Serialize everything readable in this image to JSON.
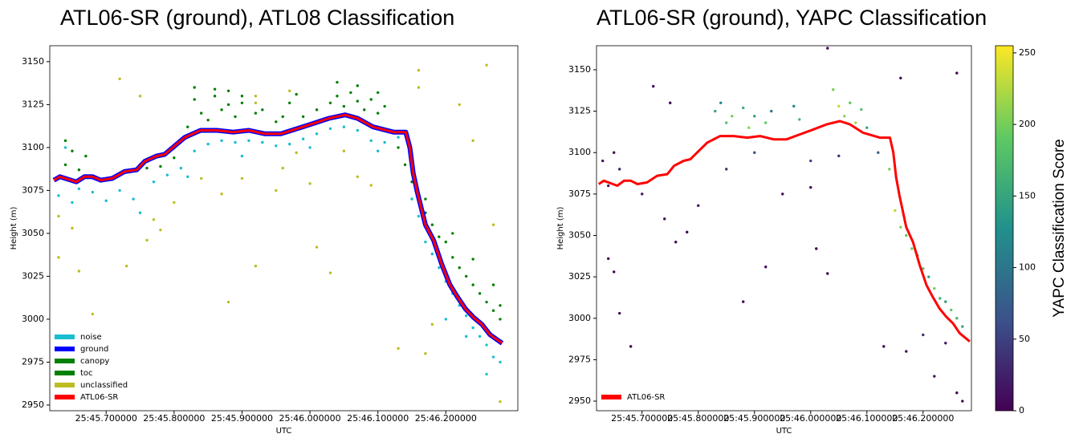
{
  "chart_data": [
    {
      "type": "scatter",
      "title": "ATL06-SR (ground), ATL08 Classification",
      "xlabel": "UTC",
      "ylabel": "Height (m)",
      "xlim": [
        45.617,
        46.306
      ],
      "ylim": [
        2946.7,
        3159.3
      ],
      "xticks": [
        {
          "value": 45.7,
          "label": "25:45.700000"
        },
        {
          "value": 45.8,
          "label": "25:45.800000"
        },
        {
          "value": 45.9,
          "label": "25:45.900000"
        },
        {
          "value": 46.0,
          "label": "25:46.000000"
        },
        {
          "value": 46.1,
          "label": "25:46.100000"
        },
        {
          "value": 46.2,
          "label": "25:46.200000"
        }
      ],
      "yticks": [
        2950,
        2975,
        3000,
        3025,
        3050,
        3075,
        3100,
        3125,
        3150
      ],
      "legend": "lower left",
      "series": [
        {
          "name": "noise",
          "color": "#17becf",
          "x": [
            45.63,
            45.64,
            45.65,
            45.66,
            45.68,
            45.7,
            45.72,
            45.74,
            45.75,
            45.77,
            45.79,
            45.81,
            45.83,
            45.85,
            45.87,
            45.89,
            45.91,
            45.93,
            45.95,
            45.97,
            45.99,
            46.01,
            46.03,
            46.05,
            46.07,
            46.09,
            46.11,
            46.13,
            46.15,
            46.16,
            46.17,
            46.18,
            46.19,
            46.2,
            46.21,
            46.22,
            46.23,
            46.24,
            46.25,
            46.26,
            46.27,
            46.28,
            45.9,
            46.0,
            46.1,
            45.82,
            46.23,
            46.26,
            46.2
          ],
          "values": [
            3072,
            3100,
            3068,
            3076,
            3074,
            3069,
            3075,
            3070,
            3062,
            3080,
            3084,
            3088,
            3098,
            3102,
            3104,
            3103,
            3104,
            3103,
            3101,
            3102,
            3105,
            3108,
            3111,
            3112,
            3110,
            3104,
            3103,
            3106,
            3070,
            3060,
            3045,
            3038,
            3030,
            3022,
            3015,
            3008,
            3002,
            2995,
            2990,
            2985,
            2978,
            2975,
            3095,
            3100,
            3098,
            3083,
            2990,
            2968,
            3000
          ]
        },
        {
          "name": "ground",
          "color": "#0000ff",
          "line": true,
          "x": [
            45.623,
            45.632,
            45.656,
            45.668,
            45.68,
            45.692,
            45.709,
            45.727,
            45.745,
            45.757,
            45.774,
            45.786,
            45.798,
            45.816,
            45.839,
            45.863,
            45.887,
            45.91,
            45.934,
            45.957,
            45.981,
            46.005,
            46.028,
            46.052,
            46.07,
            46.093,
            46.123,
            46.141,
            46.147,
            46.152,
            46.158,
            46.17,
            46.182,
            46.194,
            46.206,
            46.217,
            46.229,
            46.241,
            46.253,
            46.265,
            46.283
          ],
          "values": [
            3081,
            3083,
            3080,
            3083,
            3083,
            3081,
            3082,
            3086,
            3087,
            3092,
            3095,
            3096,
            3100,
            3106,
            3110,
            3110,
            3109,
            3110,
            3108,
            3108,
            3111,
            3114,
            3117,
            3119,
            3117,
            3112,
            3109,
            3109,
            3100,
            3085,
            3074,
            3055,
            3046,
            3032,
            3020,
            3013,
            3006,
            3001,
            2997,
            2991,
            2986
          ]
        },
        {
          "name": "canopy",
          "color": "#008000",
          "x": [
            45.64,
            45.65,
            45.66,
            45.67,
            45.72,
            45.76,
            45.78,
            45.8,
            45.82,
            45.83,
            45.84,
            45.85,
            45.86,
            45.87,
            45.88,
            45.89,
            45.9,
            45.92,
            45.95,
            45.97,
            45.99,
            46.01,
            46.03,
            46.04,
            46.05,
            46.06,
            46.07,
            46.08,
            46.09,
            46.1,
            46.11,
            46.14,
            46.15,
            46.16,
            46.17,
            46.18,
            46.19,
            46.2,
            46.21,
            46.22,
            46.23,
            46.24,
            46.25,
            46.26,
            46.27,
            46.28
          ],
          "values": [
            3090,
            3098,
            3087,
            3095,
            3085,
            3088,
            3089,
            3094,
            3112,
            3128,
            3120,
            3116,
            3130,
            3122,
            3125,
            3118,
            3126,
            3120,
            3115,
            3126,
            3118,
            3122,
            3126,
            3130,
            3124,
            3132,
            3127,
            3122,
            3128,
            3120,
            3124,
            3090,
            3080,
            3070,
            3062,
            3055,
            3048,
            3045,
            3036,
            3030,
            3025,
            3020,
            3015,
            3010,
            3005,
            3000
          ]
        },
        {
          "name": "toc",
          "color": "#008000",
          "x": [
            45.64,
            45.83,
            45.86,
            45.88,
            45.9,
            45.93,
            45.96,
            45.98,
            46.04,
            46.07,
            46.1,
            46.13,
            46.17,
            46.21,
            46.24,
            46.27,
            46.28
          ],
          "values": [
            3104,
            3135,
            3134,
            3133,
            3130,
            3122,
            3118,
            3131,
            3138,
            3136,
            3132,
            3100,
            3070,
            3050,
            3035,
            3020,
            3008
          ]
        },
        {
          "name": "unclassified",
          "color": "#bcbd22",
          "x": [
            45.63,
            45.65,
            45.66,
            45.68,
            45.72,
            45.73,
            45.75,
            45.76,
            45.77,
            45.78,
            45.8,
            45.84,
            45.87,
            45.88,
            45.9,
            45.92,
            45.92,
            45.92,
            45.95,
            45.96,
            45.97,
            45.98,
            46.0,
            46.01,
            46.03,
            46.05,
            46.07,
            46.09,
            46.13,
            46.16,
            46.16,
            46.17,
            46.22,
            46.24,
            46.26,
            46.27,
            46.28,
            46.18,
            45.63
          ],
          "values": [
            3036,
            3053,
            3028,
            3003,
            3140,
            3031,
            3130,
            3046,
            3058,
            3052,
            3068,
            3082,
            3073,
            3010,
            3082,
            3031,
            3126,
            3130,
            3075,
            3088,
            3133,
            3097,
            3079,
            3042,
            3027,
            3098,
            3083,
            3078,
            2983,
            3145,
            3135,
            2980,
            3125,
            3104,
            3148,
            3055,
            2952,
            2997,
            3060
          ]
        },
        {
          "name": "ATL06-SR",
          "color": "#ff0000",
          "line": true,
          "x": [
            45.623,
            45.632,
            45.656,
            45.668,
            45.68,
            45.692,
            45.709,
            45.727,
            45.745,
            45.757,
            45.774,
            45.786,
            45.798,
            45.816,
            45.839,
            45.863,
            45.887,
            45.91,
            45.934,
            45.957,
            45.981,
            46.005,
            46.028,
            46.052,
            46.07,
            46.093,
            46.123,
            46.141,
            46.147,
            46.152,
            46.158,
            46.17,
            46.182,
            46.194,
            46.206,
            46.217,
            46.229,
            46.241,
            46.253,
            46.265,
            46.283
          ],
          "values": [
            3081,
            3083,
            3080,
            3083,
            3083,
            3081,
            3082,
            3086,
            3087,
            3092,
            3095,
            3096,
            3100,
            3106,
            3110,
            3110,
            3109,
            3110,
            3108,
            3108,
            3111,
            3114,
            3117,
            3119,
            3117,
            3112,
            3109,
            3109,
            3100,
            3085,
            3074,
            3055,
            3046,
            3032,
            3020,
            3013,
            3006,
            3001,
            2997,
            2991,
            2986
          ]
        }
      ]
    },
    {
      "type": "scatter",
      "title": "ATL06-SR (ground), YAPC Classification",
      "xlabel": "UTC",
      "ylabel": "Height (m)",
      "xlim": [
        45.619,
        46.286
      ],
      "ylim": [
        2944.2,
        3164.5
      ],
      "xticks": [
        {
          "value": 45.7,
          "label": "25:45.700000"
        },
        {
          "value": 45.8,
          "label": "25:45.800000"
        },
        {
          "value": 45.9,
          "label": "25:45.900000"
        },
        {
          "value": 46.0,
          "label": "25:46.000000"
        },
        {
          "value": 46.1,
          "label": "25:46.100000"
        },
        {
          "value": 46.2,
          "label": "25:46.200000"
        }
      ],
      "yticks": [
        2950,
        2975,
        3000,
        3025,
        3050,
        3075,
        3100,
        3125,
        3150
      ],
      "legend": "lower left",
      "colorbar": {
        "label": "YAPC Classification Score",
        "colormap": "viridis",
        "lim": [
          0,
          255
        ],
        "ticks": [
          0,
          50,
          100,
          150,
          200,
          250
        ]
      },
      "series": [
        {
          "x": [
            45.63,
            45.64,
            45.65,
            45.66,
            45.64,
            45.65,
            45.66,
            45.68,
            45.72,
            45.75,
            45.76,
            45.78,
            45.8,
            45.83,
            45.84,
            45.85,
            45.86,
            45.88,
            45.89,
            45.9,
            45.92,
            45.93,
            45.97,
            45.98,
            45.88,
            45.92,
            45.95,
            46.0,
            46.01,
            46.03,
            46.04,
            46.05,
            46.06,
            46.07,
            46.08,
            46.09,
            46.1,
            46.05,
            46.03,
            46.13,
            46.14,
            46.15,
            46.16,
            46.17,
            46.18,
            46.19,
            46.2,
            46.21,
            46.22,
            46.23,
            46.24,
            46.25,
            46.26,
            46.27,
            46.16,
            46.17,
            46.22,
            46.24,
            46.26,
            46.27,
            46.26,
            46.2,
            45.9,
            45.85,
            46.0,
            46.12,
            45.7,
            45.74
          ],
          "values": [
            3095,
            3080,
            3100,
            3090,
            3036,
            3028,
            3003,
            2983,
            3140,
            3130,
            3046,
            3052,
            3068,
            3125,
            3130,
            3118,
            3122,
            3127,
            3115,
            3122,
            3118,
            3125,
            3128,
            3120,
            3010,
            3031,
            3075,
            3079,
            3042,
            3163,
            3138,
            3128,
            3122,
            3130,
            3118,
            3126,
            3115,
            3098,
            3027,
            2983,
            3090,
            3065,
            3055,
            3050,
            3042,
            3038,
            3030,
            3025,
            3018,
            3012,
            3010,
            3005,
            3000,
            2995,
            3145,
            2980,
            2965,
            2985,
            2955,
            2950,
            3148,
            2990,
            3100,
            3090,
            3095,
            3100,
            3075,
            3060
          ],
          "scores": [
            10,
            20,
            5,
            30,
            5,
            0,
            5,
            0,
            5,
            0,
            5,
            5,
            10,
            150,
            120,
            180,
            200,
            160,
            210,
            140,
            190,
            100,
            120,
            170,
            0,
            5,
            10,
            5,
            0,
            0,
            200,
            230,
            210,
            190,
            220,
            180,
            150,
            40,
            0,
            5,
            200,
            230,
            210,
            190,
            200,
            170,
            180,
            150,
            200,
            160,
            140,
            190,
            170,
            150,
            0,
            5,
            10,
            20,
            0,
            0,
            0,
            30,
            60,
            40,
            50,
            80,
            20,
            10
          ]
        },
        {
          "name": "ATL06-SR",
          "color": "#ff0000",
          "line": true,
          "x": [
            45.623,
            45.632,
            45.656,
            45.668,
            45.68,
            45.692,
            45.709,
            45.727,
            45.745,
            45.757,
            45.774,
            45.786,
            45.798,
            45.816,
            45.839,
            45.863,
            45.887,
            45.91,
            45.934,
            45.957,
            45.981,
            46.005,
            46.028,
            46.052,
            46.07,
            46.093,
            46.123,
            46.141,
            46.147,
            46.152,
            46.158,
            46.17,
            46.182,
            46.194,
            46.206,
            46.217,
            46.229,
            46.241,
            46.253,
            46.265,
            46.283
          ],
          "values": [
            3081,
            3083,
            3080,
            3083,
            3083,
            3081,
            3082,
            3086,
            3087,
            3092,
            3095,
            3096,
            3100,
            3106,
            3110,
            3110,
            3109,
            3110,
            3108,
            3108,
            3111,
            3114,
            3117,
            3119,
            3117,
            3112,
            3109,
            3109,
            3100,
            3085,
            3074,
            3055,
            3046,
            3032,
            3020,
            3013,
            3006,
            3001,
            2997,
            2991,
            2986
          ]
        }
      ]
    }
  ]
}
